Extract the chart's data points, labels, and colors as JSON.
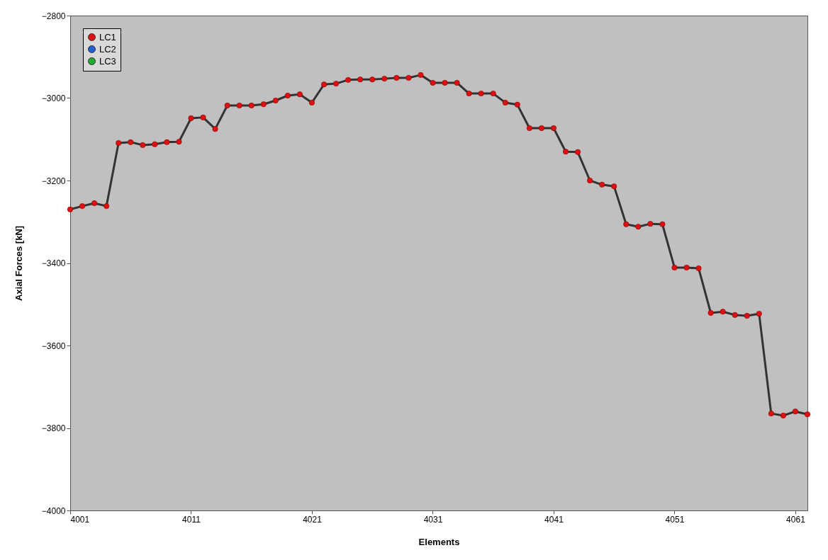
{
  "chart_data": {
    "type": "line",
    "xlabel": "Elements",
    "ylabel": "Axial Forces [kN]",
    "x": [
      4001,
      4002,
      4003,
      4004,
      4005,
      4006,
      4007,
      4008,
      4009,
      4010,
      4011,
      4012,
      4013,
      4014,
      4015,
      4016,
      4017,
      4018,
      4019,
      4020,
      4021,
      4022,
      4023,
      4024,
      4025,
      4026,
      4027,
      4028,
      4029,
      4030,
      4031,
      4032,
      4033,
      4034,
      4035,
      4036,
      4037,
      4038,
      4039,
      4040,
      4041,
      4042,
      4043,
      4044,
      4045,
      4046,
      4047,
      4048,
      4049,
      4050,
      4051,
      4052,
      4053,
      4054,
      4055,
      4056,
      4057,
      4058,
      4059,
      4060,
      4061,
      4062
    ],
    "series": [
      {
        "name": "LC1",
        "color": "#dd1111",
        "values": [
          -3270,
          -3262,
          -3255,
          -3262,
          -3109,
          -3107,
          -3114,
          -3112,
          -3107,
          -3106,
          -3049,
          -3047,
          -3075,
          -3018,
          -3018,
          -3018,
          -3015,
          -3006,
          -2994,
          -2991,
          -3011,
          -2967,
          -2965,
          -2956,
          -2955,
          -2955,
          -2953,
          -2951,
          -2951,
          -2944,
          -2963,
          -2963,
          -2963,
          -2989,
          -2989,
          -2989,
          -3011,
          -3016,
          -3073,
          -3073,
          -3073,
          -3130,
          -3131,
          -3200,
          -3210,
          -3214,
          -3306,
          -3312,
          -3305,
          -3306,
          -3411,
          -3411,
          -3413,
          -3521,
          -3518,
          -3526,
          -3528,
          -3523,
          -3765,
          -3770,
          -3760,
          -3767
        ]
      },
      {
        "name": "LC2",
        "color": "#1f5fd0",
        "values": [
          null,
          null,
          null,
          null,
          null,
          null,
          null,
          null,
          null,
          null,
          null,
          null,
          null,
          null,
          null,
          null,
          null,
          null,
          null,
          null,
          null,
          null,
          null,
          null,
          null,
          null,
          null,
          null,
          null,
          null,
          null,
          null,
          null,
          null,
          null,
          null,
          null,
          null,
          null,
          null,
          null,
          null,
          null,
          null,
          null,
          null,
          null,
          null,
          null,
          null,
          null,
          null,
          null,
          null,
          null,
          null,
          null,
          null,
          null,
          null,
          null,
          null
        ]
      },
      {
        "name": "LC3",
        "color": "#22aa33",
        "values": [
          null,
          null,
          null,
          null,
          null,
          null,
          null,
          null,
          null,
          null,
          null,
          null,
          null,
          null,
          null,
          null,
          null,
          null,
          null,
          null,
          null,
          null,
          null,
          null,
          null,
          null,
          null,
          null,
          null,
          null,
          null,
          null,
          null,
          null,
          null,
          null,
          null,
          null,
          null,
          null,
          null,
          null,
          null,
          null,
          null,
          null,
          null,
          null,
          null,
          null,
          null,
          null,
          null,
          null,
          null,
          null,
          null,
          null,
          null,
          null,
          null,
          null
        ]
      }
    ],
    "xlim": [
      4001,
      4062
    ],
    "xticks": [
      4001,
      4011,
      4021,
      4031,
      4041,
      4051,
      4061
    ],
    "ylim": [
      -4000,
      -2800
    ],
    "yticks": [
      -4000,
      -3800,
      -3600,
      -3400,
      -3200,
      -3000,
      -2800
    ],
    "grid": false,
    "legend": "top left",
    "marker": "circle",
    "line_style": "solid"
  }
}
